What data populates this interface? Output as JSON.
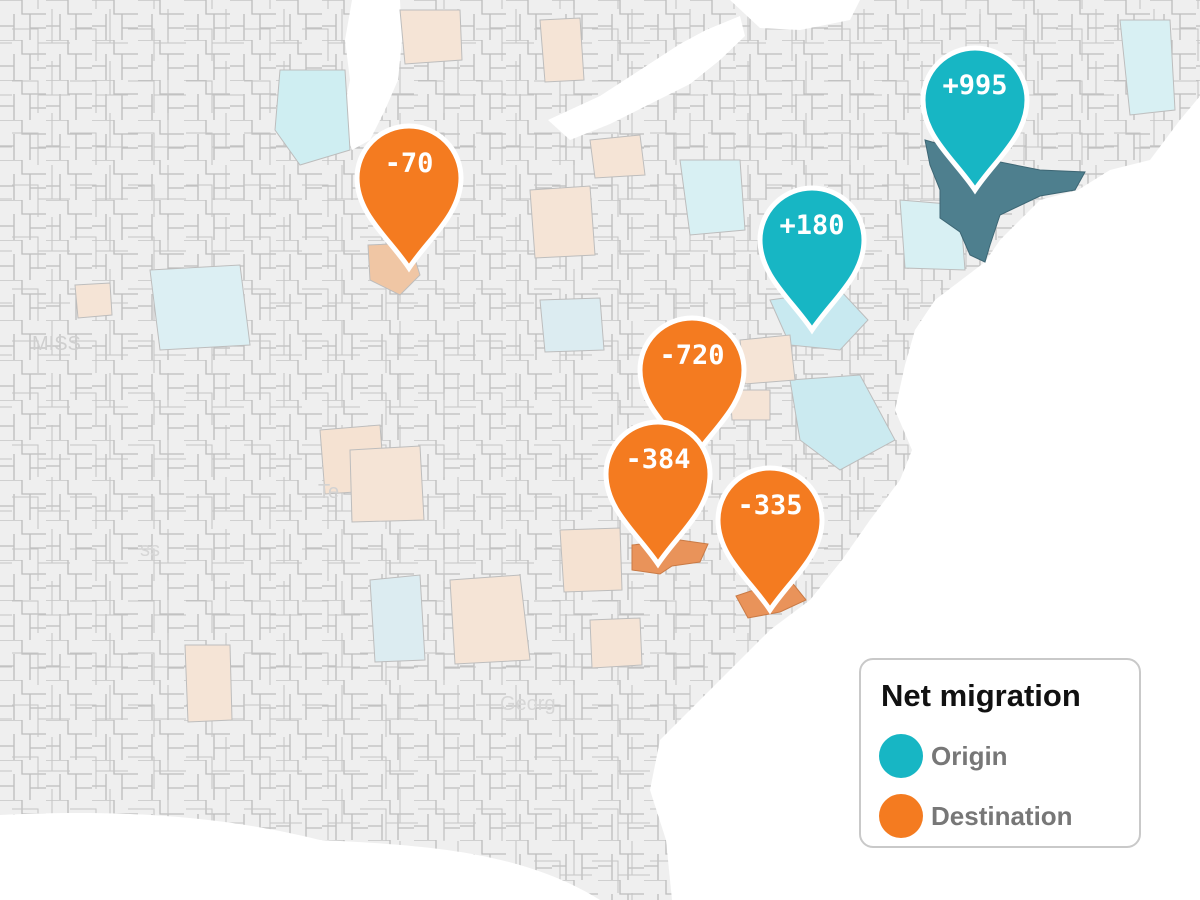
{
  "colors": {
    "origin": "#17b6c4",
    "destination": "#f47b20",
    "origin_dark": "#4e7f8e",
    "destination_fill": "#e9935a",
    "water": "#ffffff",
    "land": "#eeeeee",
    "border": "#bbbbbb"
  },
  "map_labels": [
    "MISS",
    "Te",
    "ss",
    "Georg"
  ],
  "markers": [
    {
      "id": "origin-ny",
      "type": "origin",
      "label": "+995"
    },
    {
      "id": "origin-dc",
      "type": "origin",
      "label": "+180"
    },
    {
      "id": "dest-chicago",
      "type": "destination",
      "label": "-70"
    },
    {
      "id": "dest-virginia",
      "type": "destination",
      "label": "-720"
    },
    {
      "id": "dest-charlotte",
      "type": "destination",
      "label": "-384"
    },
    {
      "id": "dest-carolina-coast",
      "type": "destination",
      "label": "-335"
    }
  ],
  "legend": {
    "title": "Net migration",
    "items": [
      {
        "label": "Origin",
        "type": "origin"
      },
      {
        "label": "Destination",
        "type": "destination"
      }
    ]
  }
}
